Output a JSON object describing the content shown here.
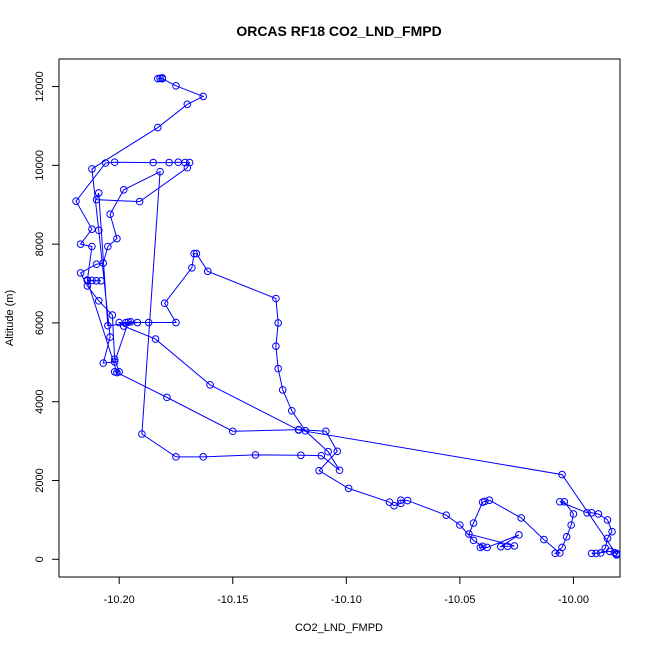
{
  "chart_data": {
    "type": "line",
    "title": "ORCAS RF18 CO2_LND_FMPD",
    "xlabel": "CO2_LND_FMPD",
    "ylabel": "Altitude (m)",
    "xlim": [
      -10.2265,
      -9.9795
    ],
    "ylim": [
      -450,
      12700
    ],
    "xticks": [
      -10.2,
      -10.15,
      -10.1,
      -10.05,
      -10.0
    ],
    "xtick_labels": [
      "-10.20",
      "-10.15",
      "-10.10",
      "-10.05",
      "-10.00"
    ],
    "yticks": [
      0,
      2000,
      4000,
      6000,
      8000,
      10000,
      12000
    ],
    "ytick_labels": [
      "0",
      "2000",
      "4000",
      "6000",
      "8000",
      "10000",
      "12000"
    ],
    "grid": false,
    "series": [
      {
        "color": "#0000ff",
        "marker": "open-circle",
        "x": [
          -9.981,
          -9.981,
          -9.982,
          -9.984,
          -9.99,
          -9.992,
          -9.988,
          -9.986,
          -9.985,
          -9.983,
          -9.985,
          -9.989,
          -9.992,
          -9.994,
          -10.006,
          -10.004,
          -10.0,
          -10.001,
          -10.003,
          -10.005,
          -10.008,
          -10.006,
          -10.013,
          -10.023,
          -10.037,
          -10.039,
          -10.04,
          -10.044,
          -10.046,
          -10.026,
          -10.029,
          -10.032,
          -10.024,
          -10.038,
          -10.041,
          -10.04,
          -10.044,
          -10.05,
          -10.056,
          -10.073,
          -10.076,
          -10.076,
          -10.079,
          -10.081,
          -10.099,
          -10.112,
          -10.104,
          -10.109,
          -10.121,
          -10.15,
          -10.179,
          -10.201,
          -10.214,
          -10.208,
          -10.21,
          -10.212,
          -10.214,
          -10.212,
          -10.217,
          -10.212,
          -10.219,
          -10.206,
          -10.202,
          -10.185,
          -10.178,
          -10.174,
          -10.171,
          -10.169,
          -10.17,
          -10.191,
          -10.21,
          -10.209,
          -10.205,
          -10.192,
          -10.195,
          -10.197,
          -10.196,
          -10.202,
          -10.207,
          -10.204,
          -10.209,
          -10.212,
          -10.183,
          -10.17,
          -10.163,
          -10.175,
          -10.181,
          -10.183,
          -10.182,
          -10.181
        ],
        "y": [
          110,
          150,
          170,
          200,
          150,
          150,
          160,
          280,
          530,
          700,
          1000,
          1150,
          1180,
          1180,
          1460,
          1460,
          1150,
          870,
          570,
          300,
          150,
          160,
          500,
          1050,
          1500,
          1470,
          1450,
          920,
          640,
          340,
          330,
          320,
          620,
          300,
          300,
          330,
          480,
          870,
          1120,
          1490,
          1500,
          1420,
          1360,
          1450,
          1800,
          2250,
          2740,
          3250,
          3290,
          3250,
          4110,
          4740,
          7070,
          7070,
          7070,
          7080,
          7090,
          7940,
          8000,
          8380,
          9090,
          10060,
          10080,
          10070,
          10070,
          10080,
          10070,
          10070,
          9940,
          9080,
          9130,
          9300,
          5930,
          6010,
          6030,
          6010,
          6020,
          5010,
          4980,
          5640,
          8350,
          9910,
          10960,
          11550,
          11750,
          12020,
          12200,
          12200,
          12210,
          12220
        ]
      },
      {
        "color": "#0000ff",
        "marker": "open-circle",
        "x": [
          -9.981,
          -10.005,
          -10.121,
          -10.16,
          -10.184,
          -10.198,
          -10.2,
          -10.187,
          -10.175,
          -10.18,
          -10.168,
          -10.167,
          -10.166,
          -10.161,
          -10.131,
          -10.13,
          -10.131,
          -10.13,
          -10.128,
          -10.124,
          -10.118,
          -10.108,
          -10.103,
          -10.111,
          -10.12,
          -10.14,
          -10.163,
          -10.175,
          -10.19,
          -10.182,
          -10.198,
          -10.204,
          -10.201,
          -10.205,
          -10.207,
          -10.21,
          -10.217,
          -10.214,
          -10.209,
          -10.203,
          -10.202,
          -10.2,
          -10.202
        ],
        "y": [
          120,
          2150,
          3280,
          4430,
          5590,
          5920,
          6010,
          6010,
          6010,
          6500,
          7400,
          7760,
          7760,
          7310,
          6620,
          6000,
          5410,
          4840,
          4300,
          3770,
          3260,
          2730,
          2260,
          2630,
          2640,
          2650,
          2600,
          2600,
          3180,
          9840,
          9380,
          8760,
          8140,
          7940,
          7520,
          7490,
          7270,
          6940,
          6560,
          6200,
          5080,
          4760,
          4760
        ]
      }
    ]
  }
}
